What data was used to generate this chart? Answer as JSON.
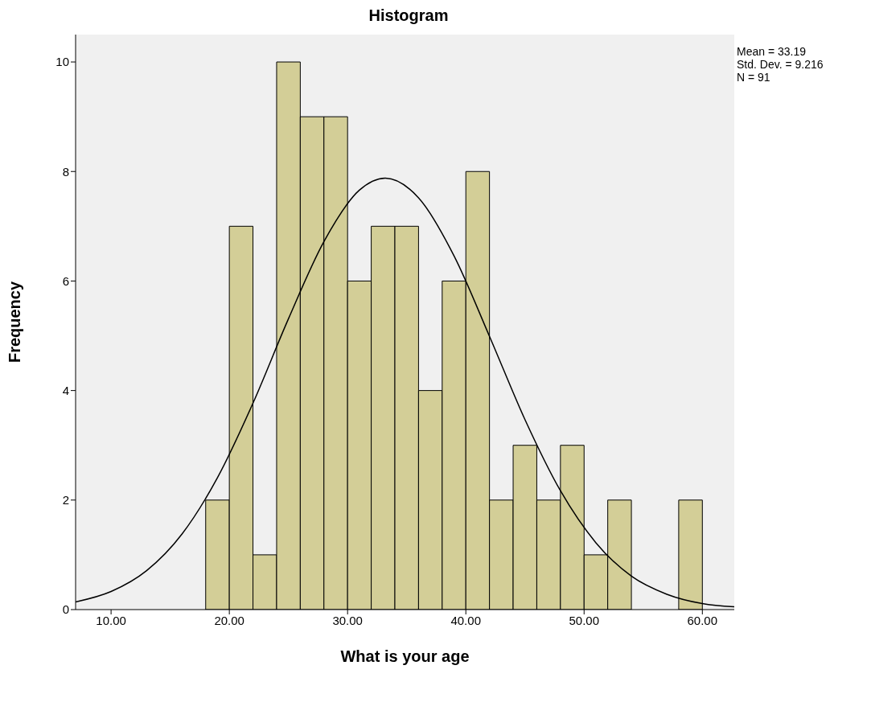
{
  "chart_data": {
    "type": "histogram",
    "title": "Histogram",
    "xlabel": "What is your age",
    "ylabel": "Frequency",
    "bins": [
      18,
      20,
      22,
      24,
      26,
      28,
      30,
      32,
      34,
      36,
      38,
      40,
      42,
      44,
      46,
      48,
      50,
      52,
      54,
      56,
      58,
      60
    ],
    "series": [
      {
        "color": "#d3ce97",
        "values": [
          2,
          7,
          1,
          10,
          9,
          9,
          6,
          7,
          7,
          4,
          6,
          8,
          2,
          3,
          2,
          3,
          1,
          2,
          0,
          0,
          2
        ]
      },
      {
        "type": "line",
        "color": "#000000",
        "x": [
          7,
          10,
          13,
          16,
          19,
          22,
          25,
          28,
          31,
          33.19,
          36,
          39,
          42,
          45,
          48,
          51,
          54,
          57,
          60,
          62.7
        ],
        "values": [
          0.14,
          0.33,
          0.71,
          1.38,
          2.41,
          3.77,
          5.31,
          6.72,
          7.66,
          7.88,
          7.52,
          6.46,
          4.99,
          3.47,
          2.17,
          1.22,
          0.61,
          0.28,
          0.11,
          0.05
        ]
      }
    ],
    "xlim": [
      7,
      62.7
    ],
    "xticks": [
      {
        "value": 10,
        "label": "10.00"
      },
      {
        "value": 20,
        "label": "20.00"
      },
      {
        "value": 30,
        "label": "30.00"
      },
      {
        "value": 40,
        "label": "40.00"
      },
      {
        "value": 50,
        "label": "50.00"
      },
      {
        "value": 60,
        "label": "60.00"
      }
    ],
    "ylim": [
      0,
      10.5
    ],
    "yticks": [
      0,
      2,
      4,
      6,
      8,
      10
    ],
    "annotations": [
      "Mean = 33.19",
      "Std. Dev. = 9.216",
      "N = 91"
    ],
    "grid": false,
    "legend": false,
    "marker": "none",
    "line_style": "solid"
  }
}
